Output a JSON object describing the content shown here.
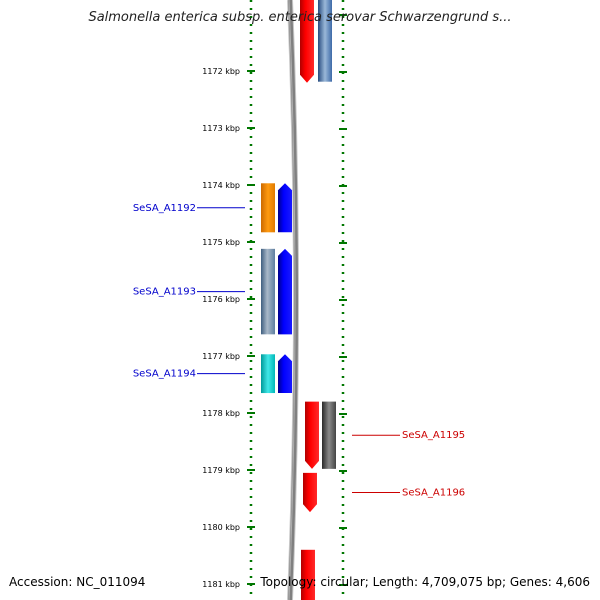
{
  "title": "Salmonella enterica subsp. enterica serovar Schwarzengrund s...",
  "footer": {
    "accession": "Accession: NC_011094",
    "summary": "Topology: circular; Length: 4,709,075 bp; Genes: 4,606"
  },
  "axis": {
    "ticks": [
      {
        "label": "1172 kbp",
        "kbp": 1172
      },
      {
        "label": "1173 kbp",
        "kbp": 1173
      },
      {
        "label": "1174 kbp",
        "kbp": 1174
      },
      {
        "label": "1175 kbp",
        "kbp": 1175
      },
      {
        "label": "1176 kbp",
        "kbp": 1176
      },
      {
        "label": "1177 kbp",
        "kbp": 1177
      },
      {
        "label": "1178 kbp",
        "kbp": 1178
      },
      {
        "label": "1179 kbp",
        "kbp": 1179
      },
      {
        "label": "1180 kbp",
        "kbp": 1180
      },
      {
        "label": "1181 kbp",
        "kbp": 1181
      }
    ]
  },
  "genes": {
    "left": [
      {
        "label": "SeSA_A1192",
        "start_kbp": 1173.97,
        "end_kbp": 1174.83,
        "color": "#0000cc",
        "cog_color": "#ff8c00"
      },
      {
        "label": "SeSA_A1193",
        "start_kbp": 1175.12,
        "end_kbp": 1176.62,
        "color": "#0000cc",
        "cog_color": "#5f7fa0"
      },
      {
        "label": "SeSA_A1194",
        "start_kbp": 1176.97,
        "end_kbp": 1177.65,
        "color": "#0000cc",
        "cog_color": "#00c8c8"
      }
    ],
    "right": [
      {
        "label": "SeSA_A1195",
        "start_kbp": 1177.8,
        "end_kbp": 1178.98,
        "color": "#cc0000",
        "cog_color": "#555555"
      },
      {
        "label": "SeSA_A1196",
        "start_kbp": 1179.05,
        "end_kbp": 1179.74,
        "color": "#cc0000",
        "cog_color": null
      }
    ],
    "partial_top": {
      "end_kbp": 1172.1,
      "color": "#ff0000",
      "cog_color": "#4a7fbf"
    },
    "partial_bottom": {
      "start_kbp": 1180.4,
      "color": "#ff0000"
    }
  },
  "colors": {
    "forward_strand": "#0000ff",
    "reverse_strand": "#ff0000",
    "dotted_track": "#007700",
    "backbone": "#808080",
    "label_forward": "#0000cc",
    "label_reverse": "#cc0000"
  }
}
